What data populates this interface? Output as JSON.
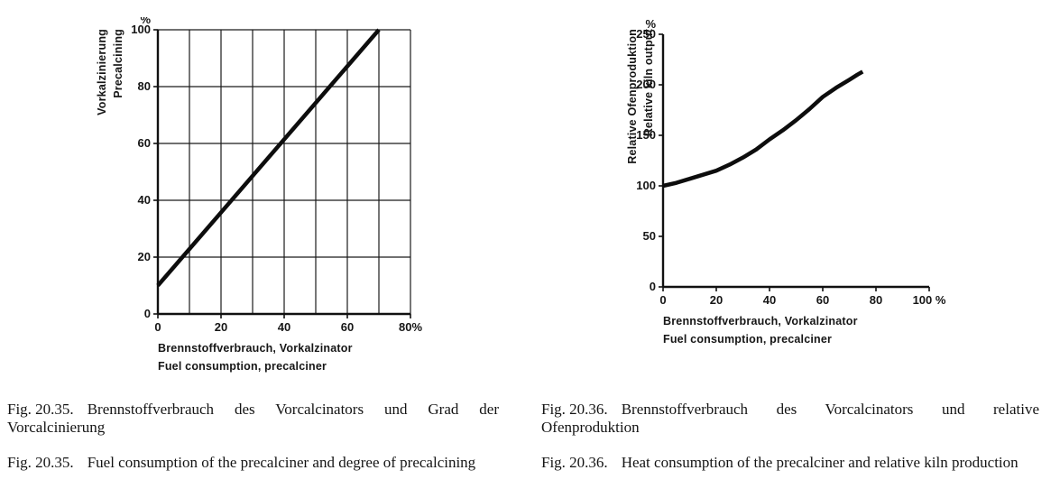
{
  "chart_data": [
    {
      "type": "line",
      "unit_label": "%",
      "xlim": [
        0,
        80
      ],
      "ylim": [
        0,
        100
      ],
      "x_ticks": [
        0,
        20,
        40,
        60,
        80
      ],
      "x_tick_labels": [
        "0",
        "20",
        "40",
        "60",
        "80%"
      ],
      "y_ticks": [
        0,
        20,
        40,
        60,
        80,
        100
      ],
      "y_tick_labels": [
        "0",
        "20",
        "40",
        "60",
        "80",
        "100"
      ],
      "grid": true,
      "grid_x_interval": 10,
      "grid_y_interval": 20,
      "ylabel_de": "Vorkalzinierung",
      "ylabel_en": "Precalcining",
      "xlabel_de": "Brennstoffverbrauch, Vorkalzinator",
      "xlabel_en": "Fuel consumption, precalciner",
      "series": [
        {
          "name": "degree-of-precalcining",
          "x": [
            0,
            70
          ],
          "y": [
            10,
            100
          ]
        }
      ]
    },
    {
      "type": "line",
      "unit_label": "%",
      "xlim": [
        0,
        100
      ],
      "ylim": [
        0,
        250
      ],
      "x_ticks": [
        0,
        20,
        40,
        60,
        80,
        100
      ],
      "x_tick_labels": [
        "0",
        "20",
        "40",
        "60",
        "80",
        "100 %"
      ],
      "y_ticks": [
        0,
        50,
        100,
        150,
        200,
        250
      ],
      "y_tick_labels": [
        "0",
        "50",
        "100",
        "150",
        "200",
        "250"
      ],
      "grid": false,
      "ylabel_de": "Relative Ofenproduktion",
      "ylabel_en": "Relative kiln output",
      "xlabel_de": "Brennstoffverbrauch, Vorkalzinator",
      "xlabel_en": "Fuel consumption, precalciner",
      "series": [
        {
          "name": "relative-kiln-output",
          "x": [
            0,
            5,
            10,
            15,
            20,
            25,
            30,
            35,
            40,
            45,
            50,
            55,
            60,
            65,
            70,
            73,
            75
          ],
          "y": [
            100,
            103,
            107,
            111,
            115,
            121,
            128,
            136,
            146,
            155,
            165,
            176,
            188,
            197,
            205,
            210,
            213
          ]
        }
      ]
    }
  ],
  "captions": {
    "left": [
      {
        "fig": "Fig. 20.35.",
        "text": "Brennstoffverbrauch des Vorcalcinators und Grad der Vorcalcinierung"
      },
      {
        "fig": "Fig. 20.35.",
        "text": "Fuel consumption of the precalciner and degree of precalcining"
      }
    ],
    "right": [
      {
        "fig": "Fig. 20.36.",
        "text": "Brennstoffverbrauch des Vorcalcinators und relative Ofenproduktion"
      },
      {
        "fig": "Fig. 20.36.",
        "text": "Heat consumption of the precalciner and relative kiln production"
      }
    ]
  }
}
